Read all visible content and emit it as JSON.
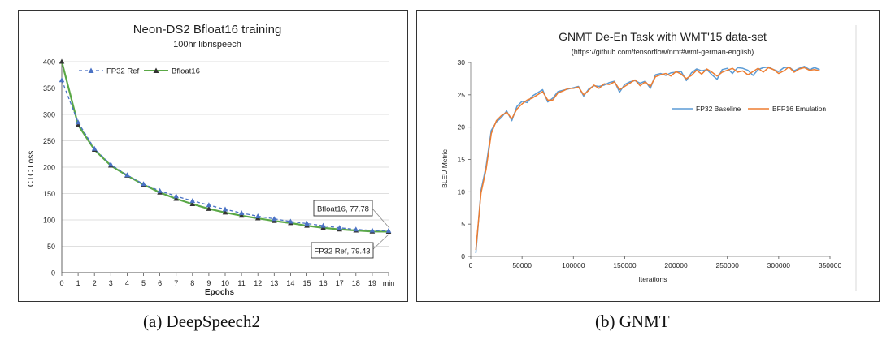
{
  "captions": {
    "a": "(a) DeepSpeech2",
    "b": "(b) GNMT"
  },
  "chart_data": [
    {
      "type": "line",
      "title": "Neon-DS2 Bfloat16 training",
      "subtitle": "100hr librispeech",
      "xlabel": "Epochs",
      "ylabel": "CTC Loss",
      "categories": [
        "0",
        "1",
        "2",
        "3",
        "4",
        "5",
        "6",
        "7",
        "8",
        "9",
        "10",
        "11",
        "12",
        "13",
        "14",
        "15",
        "16",
        "17",
        "18",
        "19",
        "min"
      ],
      "ylim": [
        0,
        400
      ],
      "yticks": [
        0,
        50,
        100,
        150,
        200,
        250,
        300,
        350,
        400
      ],
      "legend_position": "top-left",
      "series": [
        {
          "name": "FP32 Ref",
          "color": "#4a72c4",
          "dashed": true,
          "values": [
            365,
            285,
            235,
            205,
            185,
            168,
            155,
            145,
            136,
            128,
            120,
            113,
            107,
            102,
            97,
            93,
            89,
            85,
            82,
            80,
            79.43
          ]
        },
        {
          "name": "Bfloat16",
          "color": "#5aa846",
          "dashed": false,
          "values": [
            400,
            280,
            233,
            203,
            184,
            167,
            152,
            140,
            130,
            121,
            114,
            108,
            103,
            98,
            94,
            89,
            85,
            82,
            80,
            78,
            77.78
          ]
        }
      ],
      "annotations": [
        {
          "text": "Bfloat16, 77.78"
        },
        {
          "text": "FP32 Ref, 79.43"
        }
      ]
    },
    {
      "type": "line",
      "title": "GNMT De-En Task with WMT'15 data-set",
      "subtitle": "(https://github.com/tensorflow/nmt#wmt-german-english)",
      "xlabel": "Iterations",
      "ylabel": "BLEU Metric",
      "xlim": [
        0,
        350000
      ],
      "xticks": [
        0,
        50000,
        100000,
        150000,
        200000,
        250000,
        300000,
        350000
      ],
      "xtick_labels": [
        "0",
        "50000",
        "100000",
        "150000",
        "200000",
        "250000",
        "300000",
        "350000"
      ],
      "ylim": [
        0,
        30
      ],
      "yticks": [
        0,
        5,
        10,
        15,
        20,
        25,
        30
      ],
      "legend_position": "right-middle",
      "x": [
        5000,
        10000,
        15000,
        20000,
        25000,
        30000,
        35000,
        40000,
        45000,
        50000,
        55000,
        60000,
        65000,
        70000,
        75000,
        80000,
        85000,
        90000,
        95000,
        100000,
        105000,
        110000,
        115000,
        120000,
        125000,
        130000,
        135000,
        140000,
        145000,
        150000,
        155000,
        160000,
        165000,
        170000,
        175000,
        180000,
        185000,
        190000,
        195000,
        200000,
        205000,
        210000,
        215000,
        220000,
        225000,
        230000,
        235000,
        240000,
        245000,
        250000,
        255000,
        260000,
        265000,
        270000,
        275000,
        280000,
        285000,
        290000,
        295000,
        300000,
        305000,
        310000,
        315000,
        320000,
        325000,
        330000,
        335000,
        340000
      ],
      "series": [
        {
          "name": "FP32 Baseline",
          "color": "#5b9bd5",
          "values": [
            0.5,
            10.2,
            14.0,
            19.5,
            20.8,
            21.5,
            22.5,
            21.0,
            23.2,
            24.0,
            23.8,
            24.8,
            25.3,
            25.8,
            23.9,
            24.5,
            25.5,
            25.7,
            25.9,
            26.1,
            26.3,
            24.8,
            25.9,
            26.4,
            26.3,
            26.5,
            26.9,
            27.1,
            25.4,
            26.6,
            27.0,
            27.2,
            26.8,
            27.1,
            26.0,
            28.1,
            28.3,
            28.0,
            28.4,
            28.5,
            28.6,
            27.2,
            28.4,
            29.0,
            28.7,
            28.9,
            28.1,
            27.4,
            28.9,
            29.1,
            28.3,
            29.2,
            29.1,
            28.8,
            28.0,
            28.9,
            29.2,
            29.3,
            28.9,
            28.6,
            29.2,
            29.3,
            28.7,
            29.1,
            29.4,
            28.9,
            29.2,
            28.9
          ]
        },
        {
          "name": "BFP16 Emulation",
          "color": "#ed7d31",
          "values": [
            1.0,
            9.8,
            13.5,
            19.0,
            21.0,
            21.8,
            22.3,
            21.3,
            22.8,
            23.6,
            24.2,
            24.5,
            25.0,
            25.5,
            24.2,
            24.2,
            25.3,
            25.6,
            26.0,
            26.0,
            26.2,
            25.0,
            25.7,
            26.5,
            26.0,
            26.7,
            26.6,
            27.0,
            25.8,
            26.3,
            26.8,
            27.3,
            26.4,
            27.0,
            26.3,
            27.8,
            28.1,
            28.3,
            27.9,
            28.6,
            28.2,
            27.5,
            28.0,
            28.8,
            28.2,
            29.0,
            28.5,
            27.9,
            28.5,
            28.8,
            29.1,
            28.5,
            28.7,
            28.1,
            28.6,
            29.1,
            28.5,
            29.2,
            28.9,
            28.3,
            28.7,
            29.3,
            28.5,
            29.0,
            29.2,
            28.8,
            28.9,
            28.7
          ]
        }
      ]
    }
  ]
}
